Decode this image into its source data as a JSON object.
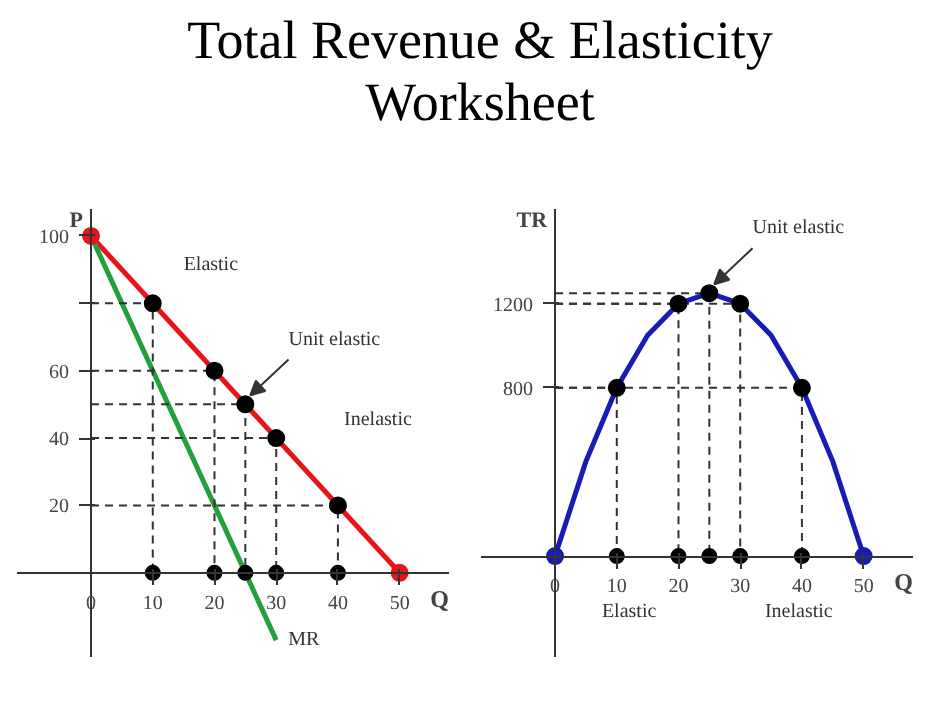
{
  "chart_data": [
    {
      "type": "line",
      "title": "Total Revenue & Elasticity\nWorksheet",
      "xlabel": "Q",
      "ylabel": "P",
      "xlim": [
        -12,
        58
      ],
      "ylim": [
        -25,
        108
      ],
      "xticks": [
        0,
        10,
        20,
        30,
        40,
        50
      ],
      "yticks": [
        20,
        40,
        60,
        {
          "value": 80,
          "label": null
        },
        100
      ],
      "grid": false,
      "series": [
        {
          "color": "#e8141b",
          "x": [
            0,
            50
          ],
          "values": [
            100,
            0
          ]
        },
        {
          "name": "MR",
          "color": "#22a03c",
          "x": [
            0,
            30
          ],
          "values": [
            100,
            -20
          ]
        },
        {
          "type": "scatter",
          "marker": "circle",
          "color": "#000000",
          "line_style": "dashed",
          "x": [
            10,
            20,
            25,
            30,
            40
          ],
          "values": [
            80,
            60,
            50,
            40,
            20
          ]
        },
        {
          "type": "scatter",
          "marker": "circle",
          "color": "#e8141b",
          "x": [
            0,
            50
          ],
          "values": [
            100,
            0
          ]
        }
      ],
      "annotations": [
        "Elastic",
        {
          "text": "Unit elastic",
          "x": 25,
          "y": 50
        },
        "Inelastic"
      ]
    },
    {
      "type": "line",
      "xlabel": "Q",
      "ylabel": "TR",
      "xlim": [
        -12,
        58
      ],
      "ylim": [
        -480,
        1650
      ],
      "xticks": [
        0,
        10,
        20,
        30,
        40,
        50
      ],
      "yticks": [
        800,
        1200
      ],
      "grid": false,
      "series": [
        {
          "color": "#1a1ab4",
          "x": [
            0,
            5,
            10,
            15,
            20,
            25,
            30,
            35,
            40,
            45,
            50
          ],
          "values": [
            0,
            450,
            800,
            1050,
            1200,
            1250,
            1200,
            1050,
            800,
            450,
            0
          ]
        },
        {
          "type": "scatter",
          "marker": "circle",
          "color": "#000000",
          "line_style": "dashed",
          "x": [
            10,
            20,
            25,
            30,
            40
          ],
          "values": [
            800,
            1200,
            1250,
            1200,
            800
          ]
        },
        {
          "type": "scatter",
          "marker": "circle",
          "color": "#1a1ab4",
          "x": [
            0,
            50
          ],
          "values": [
            0,
            0
          ]
        }
      ],
      "annotations": [
        "Elastic",
        {
          "text": "Unit elastic",
          "x": 25,
          "y": 1250
        },
        "Inelastic"
      ]
    }
  ]
}
